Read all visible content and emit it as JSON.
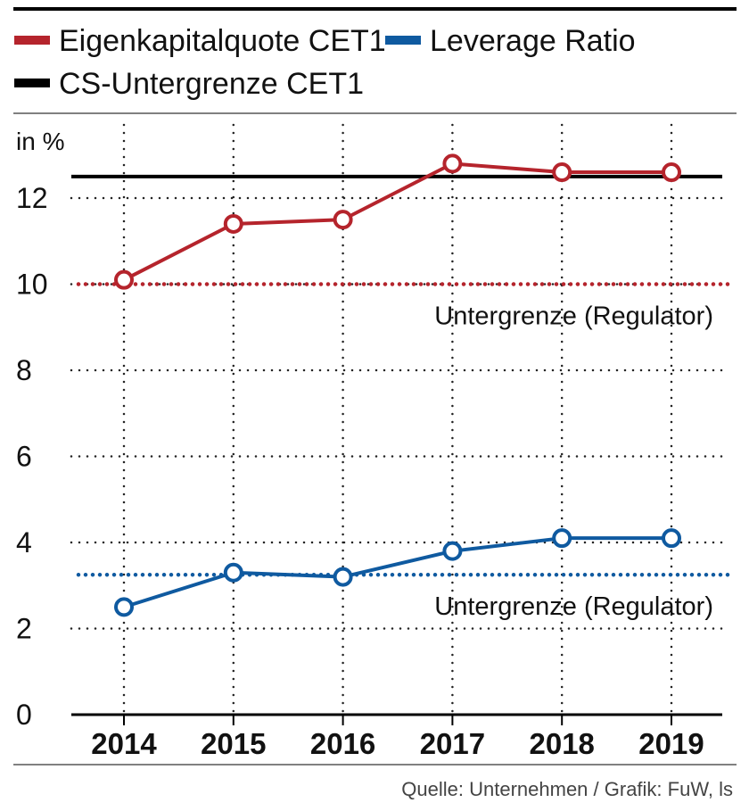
{
  "chart_data": {
    "type": "line",
    "legend": [
      {
        "label": "Eigenkapitalquote CET1",
        "color": "#b5242c"
      },
      {
        "label": "Leverage Ratio",
        "color": "#0f5aa0"
      },
      {
        "label": "CS-Untergrenze CET1",
        "color": "#000000"
      }
    ],
    "ylabel": "in %",
    "ylim": [
      0,
      13
    ],
    "yticks": [
      "0",
      "2",
      "4",
      "6",
      "8",
      "10",
      "12"
    ],
    "categories": [
      "2014",
      "2015",
      "2016",
      "2017",
      "2018",
      "2019"
    ],
    "series": [
      {
        "name": "Eigenkapitalquote CET1",
        "color": "#b5242c",
        "values": [
          10.1,
          11.4,
          11.5,
          12.8,
          12.6,
          12.6
        ]
      },
      {
        "name": "Leverage Ratio",
        "color": "#0f5aa0",
        "values": [
          2.5,
          3.3,
          3.2,
          3.8,
          4.1,
          4.1
        ]
      }
    ],
    "reference_lines": [
      {
        "name": "CS-Untergrenze CET1",
        "value": 12.5,
        "color": "#000000",
        "style": "solid"
      },
      {
        "name": "Untergrenze CET1 (Regulator)",
        "value": 10.0,
        "color": "#b5242c",
        "style": "dotted",
        "label": "Untergrenze (Regulator)"
      },
      {
        "name": "Untergrenze Leverage (Regulator)",
        "value": 3.25,
        "color": "#0f5aa0",
        "style": "dotted",
        "label": "Untergrenze (Regulator)"
      }
    ],
    "grid": true,
    "source": "Quelle: Unternehmen / Grafik: FuW, ls"
  }
}
